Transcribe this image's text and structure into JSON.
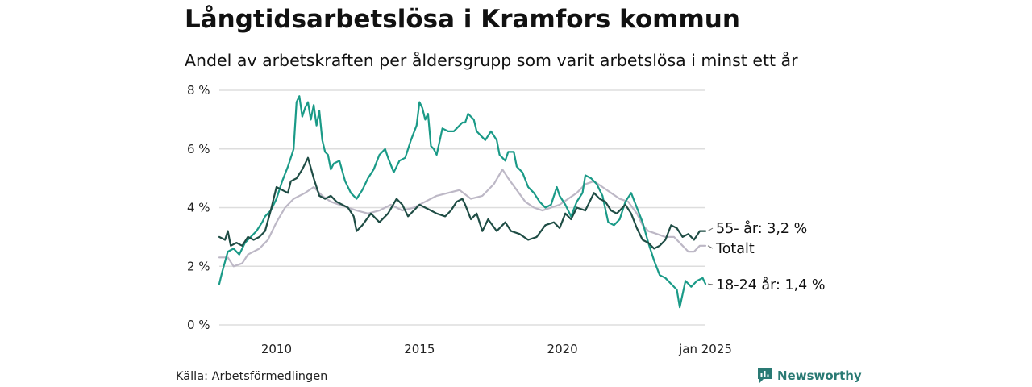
{
  "header": {
    "title": "Långtidsarbetslösa i Kramfors kommun",
    "subtitle": "Andel av arbetskraften per åldersgrupp som varit arbetslösa i minst ett år"
  },
  "footer": {
    "source": "Källa: Arbetsförmedlingen",
    "brand": "Newsworthy"
  },
  "colors": {
    "age_55_plus": "#1f4d45",
    "total": "#bdb8c6",
    "age_18_24": "#1a9a87",
    "grid": "#dddddd",
    "brand": "#2a7a74"
  },
  "chart_data": {
    "type": "line",
    "title": "Långtidsarbetslösa i Kramfors kommun",
    "subtitle": "Andel av arbetskraften per åldersgrupp som varit arbetslösa i minst ett år",
    "xlabel": "",
    "ylabel": "",
    "x_ticks": [
      {
        "label": "2010",
        "value": 2010.0
      },
      {
        "label": "2015",
        "value": 2015.0
      },
      {
        "label": "2020",
        "value": 2020.0
      },
      {
        "label": "jan 2025",
        "value": 2025.0
      }
    ],
    "y_ticks": [
      {
        "label": "0 %",
        "value": 0
      },
      {
        "label": "2 %",
        "value": 2
      },
      {
        "label": "4 %",
        "value": 4
      },
      {
        "label": "6 %",
        "value": 6
      },
      {
        "label": "8 %",
        "value": 8
      }
    ],
    "xlim": [
      2008.0,
      2025.0
    ],
    "ylim": [
      0,
      8
    ],
    "grid": true,
    "legend": "direct labels at right end of lines",
    "series": [
      {
        "name": "55- år",
        "end_label": "55- år: 3,2 %",
        "color": "#1f4d45",
        "points": [
          [
            2008.0,
            3.0
          ],
          [
            2008.2,
            2.9
          ],
          [
            2008.3,
            3.2
          ],
          [
            2008.4,
            2.7
          ],
          [
            2008.6,
            2.8
          ],
          [
            2008.8,
            2.7
          ],
          [
            2009.0,
            3.0
          ],
          [
            2009.2,
            2.9
          ],
          [
            2009.4,
            3.0
          ],
          [
            2009.6,
            3.2
          ],
          [
            2009.8,
            3.9
          ],
          [
            2010.0,
            4.7
          ],
          [
            2010.2,
            4.6
          ],
          [
            2010.4,
            4.5
          ],
          [
            2010.5,
            4.9
          ],
          [
            2010.7,
            5.0
          ],
          [
            2010.9,
            5.3
          ],
          [
            2011.1,
            5.7
          ],
          [
            2011.3,
            5.0
          ],
          [
            2011.5,
            4.4
          ],
          [
            2011.7,
            4.3
          ],
          [
            2011.9,
            4.4
          ],
          [
            2012.1,
            4.2
          ],
          [
            2012.3,
            4.1
          ],
          [
            2012.5,
            4.0
          ],
          [
            2012.7,
            3.7
          ],
          [
            2012.8,
            3.2
          ],
          [
            2013.0,
            3.4
          ],
          [
            2013.3,
            3.8
          ],
          [
            2013.6,
            3.5
          ],
          [
            2013.9,
            3.8
          ],
          [
            2014.2,
            4.3
          ],
          [
            2014.4,
            4.1
          ],
          [
            2014.6,
            3.7
          ],
          [
            2014.8,
            3.9
          ],
          [
            2015.0,
            4.1
          ],
          [
            2015.2,
            4.0
          ],
          [
            2015.4,
            3.9
          ],
          [
            2015.6,
            3.8
          ],
          [
            2015.9,
            3.7
          ],
          [
            2016.1,
            3.9
          ],
          [
            2016.3,
            4.2
          ],
          [
            2016.5,
            4.3
          ],
          [
            2016.6,
            4.1
          ],
          [
            2016.8,
            3.6
          ],
          [
            2017.0,
            3.8
          ],
          [
            2017.2,
            3.2
          ],
          [
            2017.4,
            3.6
          ],
          [
            2017.7,
            3.2
          ],
          [
            2018.0,
            3.5
          ],
          [
            2018.2,
            3.2
          ],
          [
            2018.5,
            3.1
          ],
          [
            2018.8,
            2.9
          ],
          [
            2019.1,
            3.0
          ],
          [
            2019.4,
            3.4
          ],
          [
            2019.7,
            3.5
          ],
          [
            2019.9,
            3.3
          ],
          [
            2020.1,
            3.8
          ],
          [
            2020.3,
            3.6
          ],
          [
            2020.5,
            4.0
          ],
          [
            2020.8,
            3.9
          ],
          [
            2021.1,
            4.5
          ],
          [
            2021.3,
            4.3
          ],
          [
            2021.5,
            4.2
          ],
          [
            2021.7,
            3.9
          ],
          [
            2021.9,
            3.8
          ],
          [
            2022.2,
            4.1
          ],
          [
            2022.4,
            3.8
          ],
          [
            2022.6,
            3.3
          ],
          [
            2022.8,
            2.9
          ],
          [
            2023.0,
            2.8
          ],
          [
            2023.2,
            2.6
          ],
          [
            2023.4,
            2.7
          ],
          [
            2023.6,
            2.9
          ],
          [
            2023.8,
            3.4
          ],
          [
            2024.0,
            3.3
          ],
          [
            2024.2,
            3.0
          ],
          [
            2024.4,
            3.1
          ],
          [
            2024.6,
            2.9
          ],
          [
            2024.8,
            3.2
          ],
          [
            2025.0,
            3.2
          ]
        ]
      },
      {
        "name": "Totalt",
        "end_label": "Totalt",
        "color": "#bdb8c6",
        "points": [
          [
            2008.0,
            2.3
          ],
          [
            2008.3,
            2.3
          ],
          [
            2008.5,
            2.0
          ],
          [
            2008.8,
            2.1
          ],
          [
            2009.0,
            2.4
          ],
          [
            2009.4,
            2.6
          ],
          [
            2009.7,
            2.9
          ],
          [
            2010.0,
            3.5
          ],
          [
            2010.3,
            4.0
          ],
          [
            2010.6,
            4.3
          ],
          [
            2011.0,
            4.5
          ],
          [
            2011.3,
            4.7
          ],
          [
            2011.6,
            4.4
          ],
          [
            2011.9,
            4.2
          ],
          [
            2012.2,
            4.1
          ],
          [
            2012.5,
            4.0
          ],
          [
            2012.8,
            3.9
          ],
          [
            2013.2,
            3.8
          ],
          [
            2013.6,
            3.9
          ],
          [
            2014.0,
            4.1
          ],
          [
            2014.4,
            3.9
          ],
          [
            2014.8,
            4.0
          ],
          [
            2015.2,
            4.2
          ],
          [
            2015.6,
            4.4
          ],
          [
            2016.0,
            4.5
          ],
          [
            2016.4,
            4.6
          ],
          [
            2016.8,
            4.3
          ],
          [
            2017.2,
            4.4
          ],
          [
            2017.6,
            4.8
          ],
          [
            2017.9,
            5.3
          ],
          [
            2018.1,
            5.0
          ],
          [
            2018.4,
            4.6
          ],
          [
            2018.7,
            4.2
          ],
          [
            2019.0,
            4.0
          ],
          [
            2019.3,
            3.9
          ],
          [
            2019.6,
            4.0
          ],
          [
            2019.9,
            4.1
          ],
          [
            2020.2,
            4.3
          ],
          [
            2020.5,
            4.5
          ],
          [
            2020.8,
            4.8
          ],
          [
            2021.1,
            4.9
          ],
          [
            2021.4,
            4.7
          ],
          [
            2021.7,
            4.5
          ],
          [
            2022.0,
            4.3
          ],
          [
            2022.3,
            4.2
          ],
          [
            2022.6,
            3.8
          ],
          [
            2022.8,
            3.4
          ],
          [
            2023.0,
            3.2
          ],
          [
            2023.3,
            3.1
          ],
          [
            2023.6,
            3.0
          ],
          [
            2023.9,
            3.0
          ],
          [
            2024.2,
            2.7
          ],
          [
            2024.4,
            2.5
          ],
          [
            2024.6,
            2.5
          ],
          [
            2024.8,
            2.7
          ],
          [
            2025.0,
            2.7
          ]
        ]
      },
      {
        "name": "18-24 år",
        "end_label": "18-24 år: 1,4 %",
        "color": "#1a9a87",
        "points": [
          [
            2008.0,
            1.4
          ],
          [
            2008.1,
            1.8
          ],
          [
            2008.3,
            2.5
          ],
          [
            2008.5,
            2.6
          ],
          [
            2008.7,
            2.4
          ],
          [
            2008.9,
            2.8
          ],
          [
            2009.1,
            3.0
          ],
          [
            2009.3,
            3.2
          ],
          [
            2009.5,
            3.5
          ],
          [
            2009.6,
            3.7
          ],
          [
            2009.8,
            3.9
          ],
          [
            2010.0,
            4.3
          ],
          [
            2010.2,
            4.9
          ],
          [
            2010.4,
            5.4
          ],
          [
            2010.5,
            5.7
          ],
          [
            2010.6,
            6.0
          ],
          [
            2010.7,
            7.6
          ],
          [
            2010.8,
            7.8
          ],
          [
            2010.9,
            7.1
          ],
          [
            2011.0,
            7.4
          ],
          [
            2011.1,
            7.6
          ],
          [
            2011.2,
            7.0
          ],
          [
            2011.3,
            7.5
          ],
          [
            2011.4,
            6.8
          ],
          [
            2011.5,
            7.3
          ],
          [
            2011.6,
            6.3
          ],
          [
            2011.7,
            5.9
          ],
          [
            2011.8,
            5.8
          ],
          [
            2011.9,
            5.3
          ],
          [
            2012.0,
            5.5
          ],
          [
            2012.2,
            5.6
          ],
          [
            2012.4,
            4.9
          ],
          [
            2012.6,
            4.5
          ],
          [
            2012.8,
            4.3
          ],
          [
            2013.0,
            4.6
          ],
          [
            2013.2,
            5.0
          ],
          [
            2013.4,
            5.3
          ],
          [
            2013.6,
            5.8
          ],
          [
            2013.8,
            6.0
          ],
          [
            2013.9,
            5.7
          ],
          [
            2014.1,
            5.2
          ],
          [
            2014.3,
            5.6
          ],
          [
            2014.5,
            5.7
          ],
          [
            2014.7,
            6.3
          ],
          [
            2014.9,
            6.8
          ],
          [
            2015.0,
            7.6
          ],
          [
            2015.1,
            7.4
          ],
          [
            2015.2,
            7.0
          ],
          [
            2015.3,
            7.2
          ],
          [
            2015.4,
            6.1
          ],
          [
            2015.5,
            6.0
          ],
          [
            2015.6,
            5.8
          ],
          [
            2015.8,
            6.7
          ],
          [
            2016.0,
            6.6
          ],
          [
            2016.2,
            6.6
          ],
          [
            2016.3,
            6.7
          ],
          [
            2016.5,
            6.9
          ],
          [
            2016.6,
            6.9
          ],
          [
            2016.7,
            7.2
          ],
          [
            2016.9,
            7.0
          ],
          [
            2017.0,
            6.6
          ],
          [
            2017.2,
            6.4
          ],
          [
            2017.3,
            6.3
          ],
          [
            2017.5,
            6.6
          ],
          [
            2017.7,
            6.3
          ],
          [
            2017.8,
            5.8
          ],
          [
            2018.0,
            5.6
          ],
          [
            2018.1,
            5.9
          ],
          [
            2018.3,
            5.9
          ],
          [
            2018.4,
            5.4
          ],
          [
            2018.6,
            5.2
          ],
          [
            2018.8,
            4.7
          ],
          [
            2019.0,
            4.5
          ],
          [
            2019.2,
            4.2
          ],
          [
            2019.4,
            4.0
          ],
          [
            2019.6,
            4.1
          ],
          [
            2019.8,
            4.7
          ],
          [
            2019.9,
            4.4
          ],
          [
            2020.1,
            4.1
          ],
          [
            2020.3,
            3.7
          ],
          [
            2020.5,
            4.2
          ],
          [
            2020.7,
            4.5
          ],
          [
            2020.8,
            5.1
          ],
          [
            2021.0,
            5.0
          ],
          [
            2021.2,
            4.8
          ],
          [
            2021.4,
            4.4
          ],
          [
            2021.6,
            3.5
          ],
          [
            2021.8,
            3.4
          ],
          [
            2022.0,
            3.6
          ],
          [
            2022.2,
            4.2
          ],
          [
            2022.4,
            4.5
          ],
          [
            2022.6,
            4.0
          ],
          [
            2022.8,
            3.5
          ],
          [
            2023.0,
            2.8
          ],
          [
            2023.2,
            2.2
          ],
          [
            2023.4,
            1.7
          ],
          [
            2023.6,
            1.6
          ],
          [
            2023.8,
            1.4
          ],
          [
            2024.0,
            1.2
          ],
          [
            2024.1,
            0.6
          ],
          [
            2024.3,
            1.5
          ],
          [
            2024.5,
            1.3
          ],
          [
            2024.7,
            1.5
          ],
          [
            2024.9,
            1.6
          ],
          [
            2025.0,
            1.4
          ]
        ]
      }
    ]
  }
}
